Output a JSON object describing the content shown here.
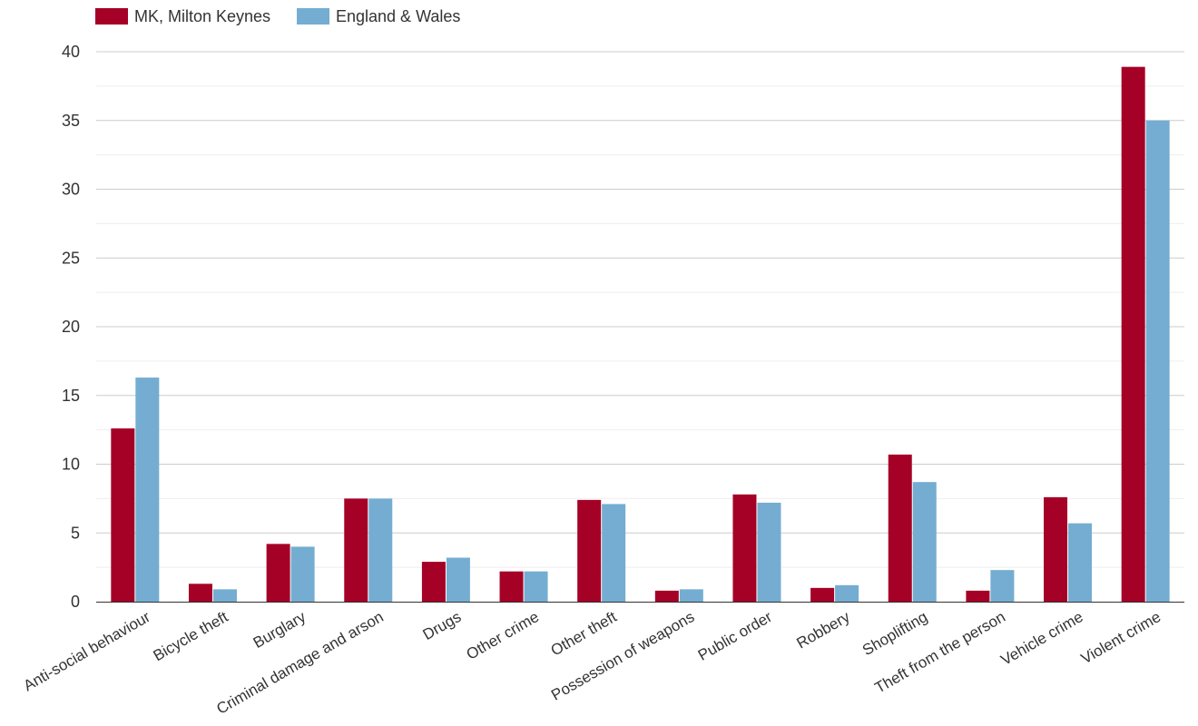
{
  "colors": {
    "mk": "#a50026",
    "ew": "#74add1",
    "grid_major": "#cccccc",
    "grid_minor": "#eeeeee",
    "axis": "#333333",
    "text": "#333333"
  },
  "chart_data": {
    "type": "bar",
    "title": "",
    "xlabel": "",
    "ylabel": "",
    "ylim": [
      0,
      40
    ],
    "yticks": [
      0,
      5,
      10,
      15,
      20,
      25,
      30,
      35,
      40
    ],
    "grid": true,
    "legend_position": "top-left",
    "categories": [
      "Anti-social behaviour",
      "Bicycle theft",
      "Burglary",
      "Criminal damage and arson",
      "Drugs",
      "Other crime",
      "Other theft",
      "Possession of weapons",
      "Public order",
      "Robbery",
      "Shoplifting",
      "Theft from the person",
      "Vehicle crime",
      "Violent crime"
    ],
    "series": [
      {
        "name": "MK, Milton Keynes",
        "color": "#a50026",
        "values": [
          12.6,
          1.3,
          4.2,
          7.5,
          2.9,
          2.2,
          7.4,
          0.8,
          7.8,
          1.0,
          10.7,
          0.8,
          7.6,
          38.9
        ]
      },
      {
        "name": "England & Wales",
        "color": "#74add1",
        "values": [
          16.3,
          0.9,
          4.0,
          7.5,
          3.2,
          2.2,
          7.1,
          0.9,
          7.2,
          1.2,
          8.7,
          2.3,
          5.7,
          35.0
        ]
      }
    ]
  }
}
